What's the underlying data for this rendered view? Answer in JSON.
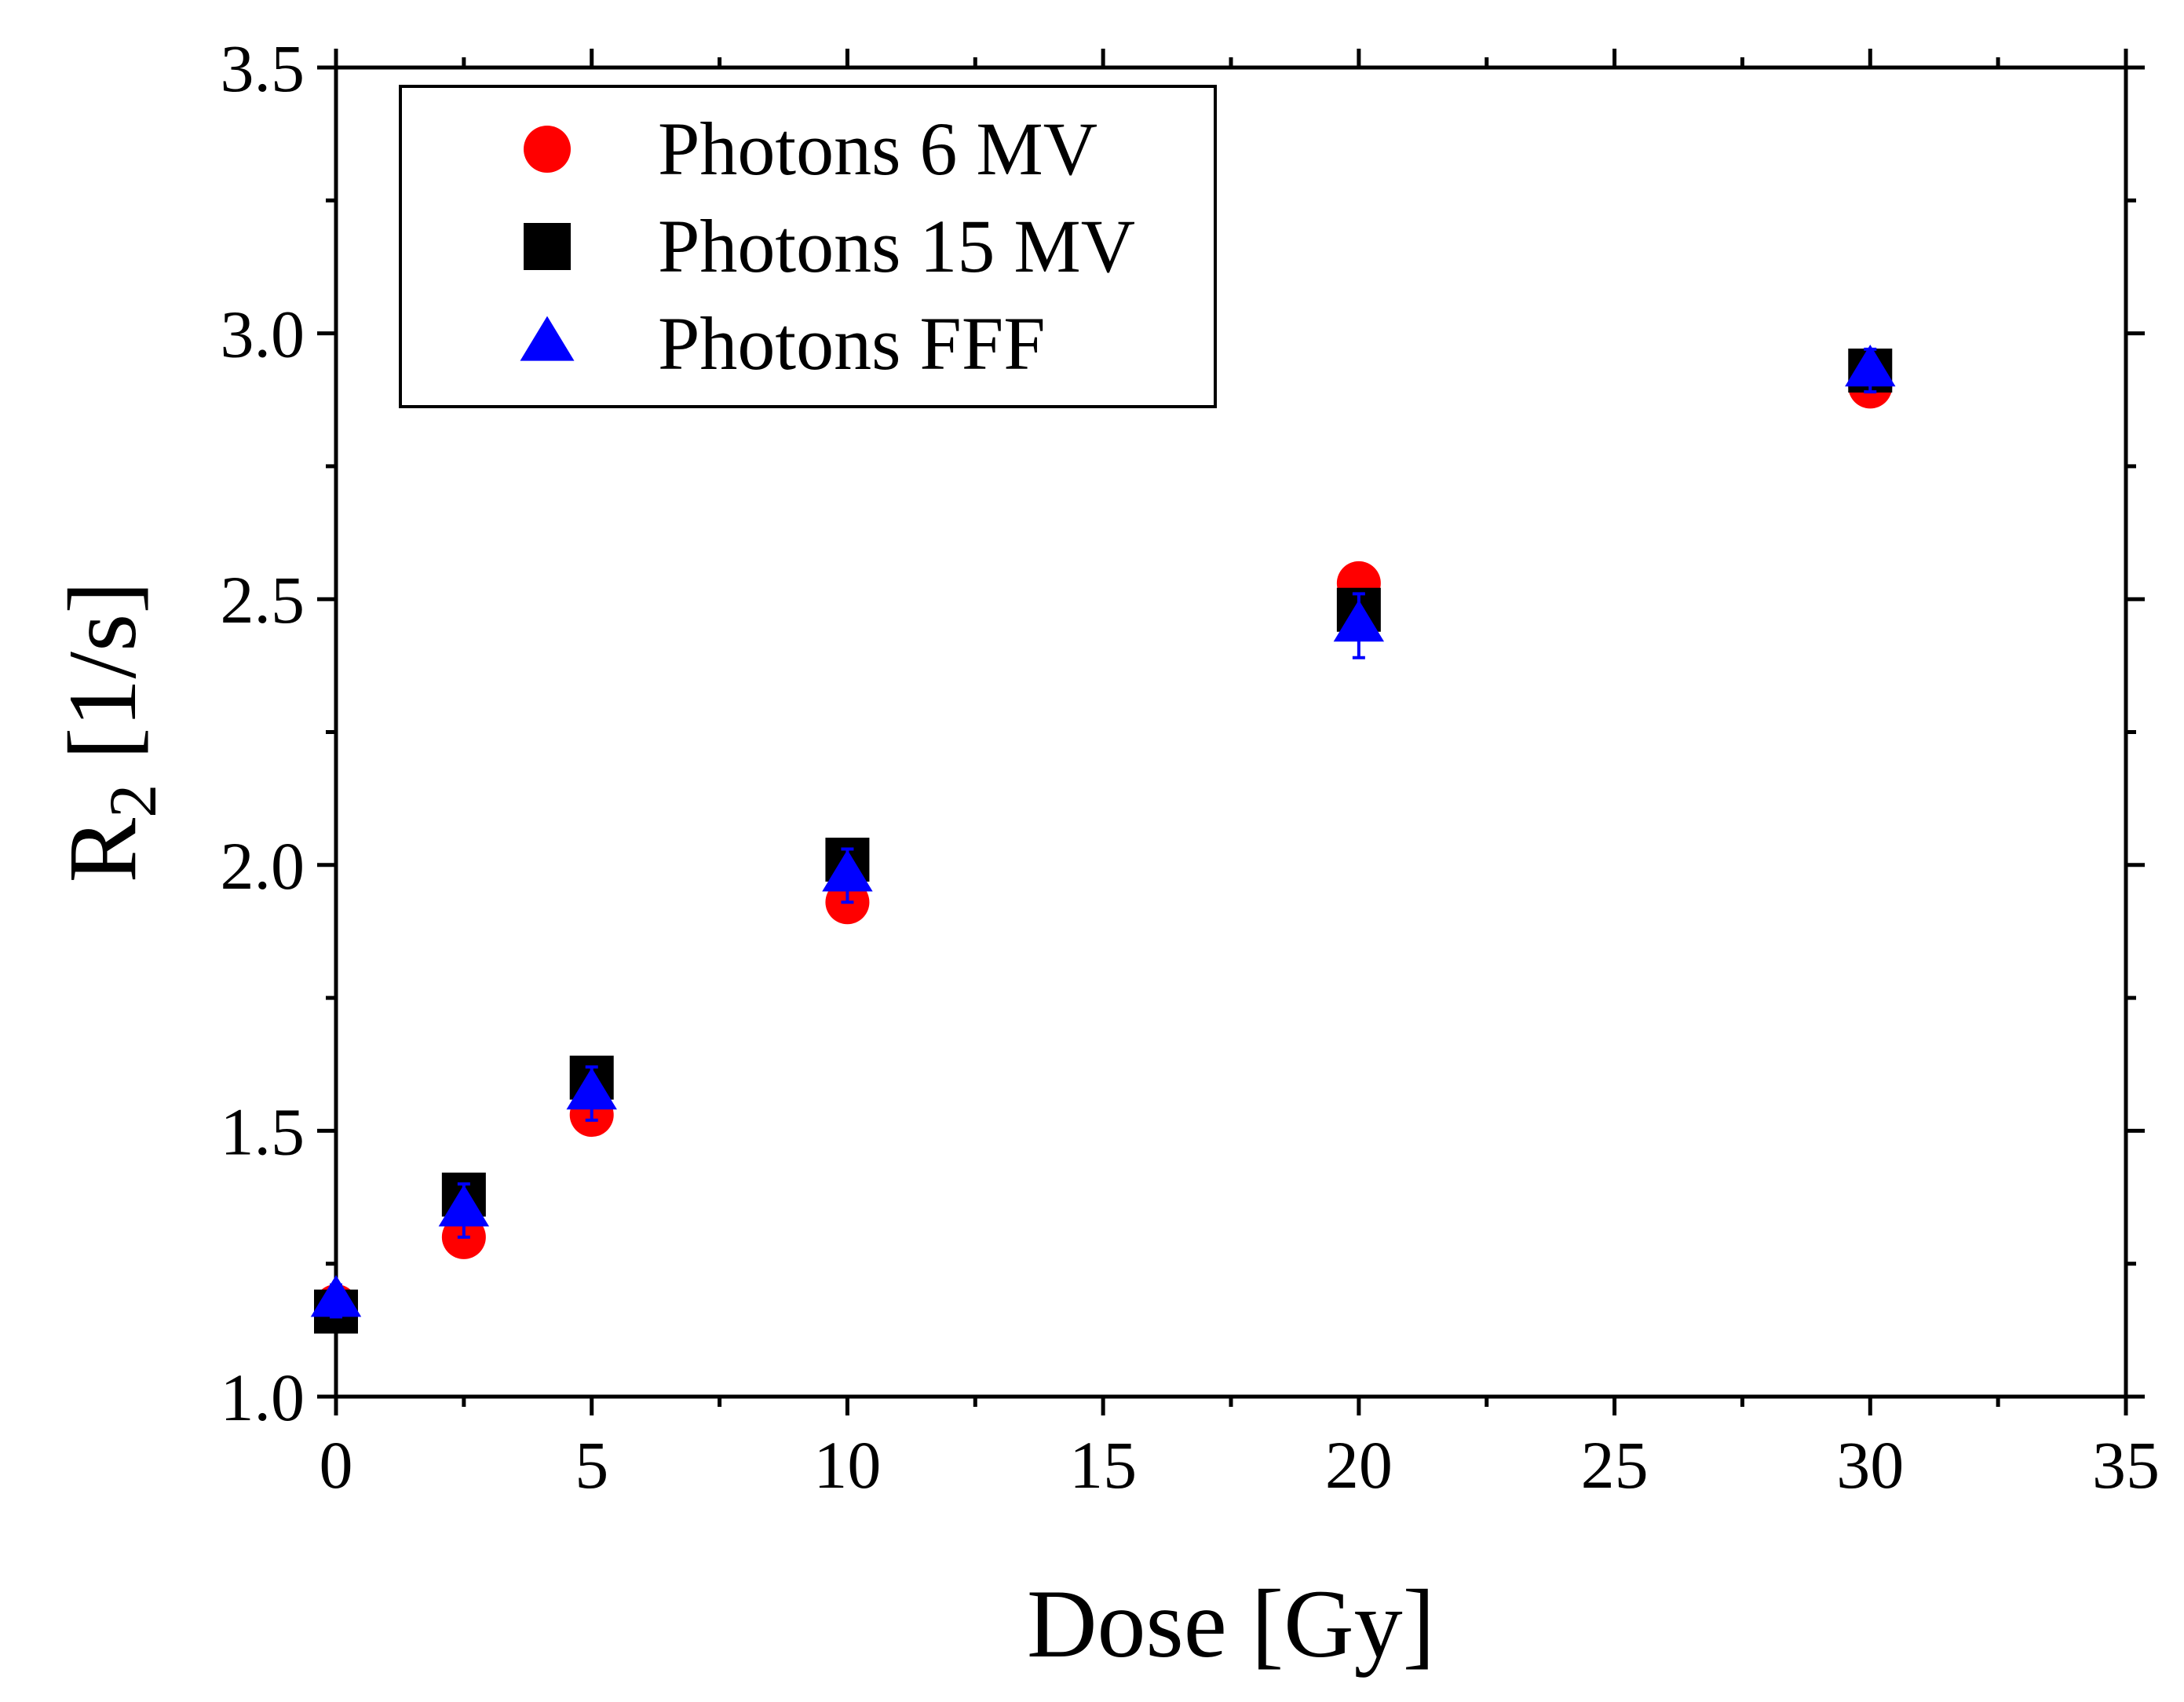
{
  "chart_data": {
    "type": "scatter",
    "title": "",
    "xlabel": "Dose [Gy]",
    "ylabel": "R",
    "ylabel_subscript": "2",
    "ylabel_unit": " [1/s]",
    "xlim": [
      0,
      35
    ],
    "ylim": [
      1.0,
      3.5
    ],
    "x_major_ticks": [
      0,
      5,
      10,
      15,
      20,
      25,
      30,
      35
    ],
    "x_tick_labels": [
      "0",
      "5",
      "10",
      "15",
      "20",
      "25",
      "30",
      "35"
    ],
    "y_major_ticks": [
      1.0,
      1.5,
      2.0,
      2.5,
      3.0,
      3.5
    ],
    "y_tick_labels": [
      "1.0",
      "1.5",
      "2.0",
      "2.5",
      "3.0",
      "3.5"
    ],
    "x_minor_step": 2.5,
    "y_minor_step": 0.25,
    "grid": false,
    "legend_position": "top-left",
    "series": [
      {
        "name": "Photons 6 MV",
        "marker": "circle",
        "color": "#ff0000",
        "x": [
          0,
          2.5,
          5,
          10,
          20,
          30
        ],
        "y": [
          1.17,
          1.3,
          1.53,
          1.93,
          2.53,
          2.9
        ],
        "yerr": [
          0.02,
          0.02,
          0.02,
          0.02,
          0.02,
          0.02
        ]
      },
      {
        "name": "Photons 15 MV",
        "marker": "square",
        "color": "#000000",
        "x": [
          0,
          2.5,
          5,
          10,
          20,
          30
        ],
        "y": [
          1.16,
          1.38,
          1.6,
          2.01,
          2.48,
          2.93
        ],
        "yerr": [
          0.02,
          0.02,
          0.02,
          0.02,
          0.03,
          0.02
        ]
      },
      {
        "name": "Photons FFF",
        "marker": "triangle",
        "color": "#0000ff",
        "x": [
          0,
          2.5,
          5,
          10,
          20,
          30
        ],
        "y": [
          1.18,
          1.35,
          1.57,
          1.98,
          2.45,
          2.93
        ],
        "yerr": [
          0.03,
          0.05,
          0.05,
          0.05,
          0.06,
          0.04
        ]
      }
    ]
  }
}
